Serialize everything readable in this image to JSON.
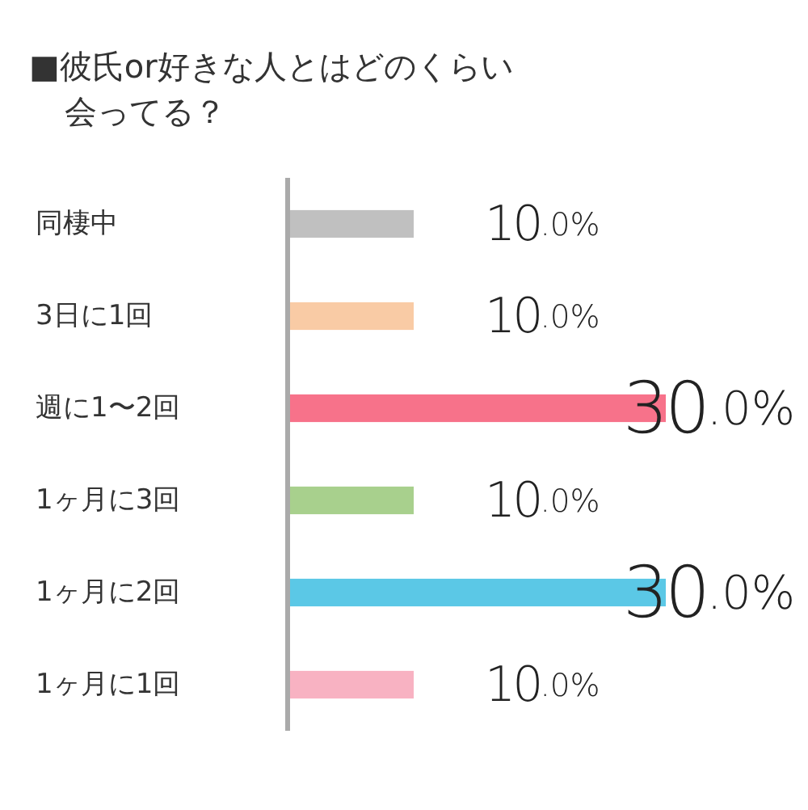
{
  "chart_data": {
    "type": "bar",
    "orientation": "horizontal",
    "title": "■彼氏or好きな人とはどのくらい会ってる？",
    "categories": [
      "同棲中",
      "3日に1回",
      "週に1〜2回",
      "1ヶ月に3回",
      "1ヶ月に2回",
      "1ヶ月に1回"
    ],
    "values": [
      10,
      10,
      30,
      10,
      30,
      10
    ],
    "colors": [
      "#c0c0c0",
      "#f9cba5",
      "#f7728a",
      "#a8d08d",
      "#5bc8e6",
      "#f8b2c2"
    ],
    "value_labels": [
      "10.0%",
      "10.0%",
      "30.0%",
      "10.0%",
      "30.0%",
      "10.0%"
    ]
  }
}
